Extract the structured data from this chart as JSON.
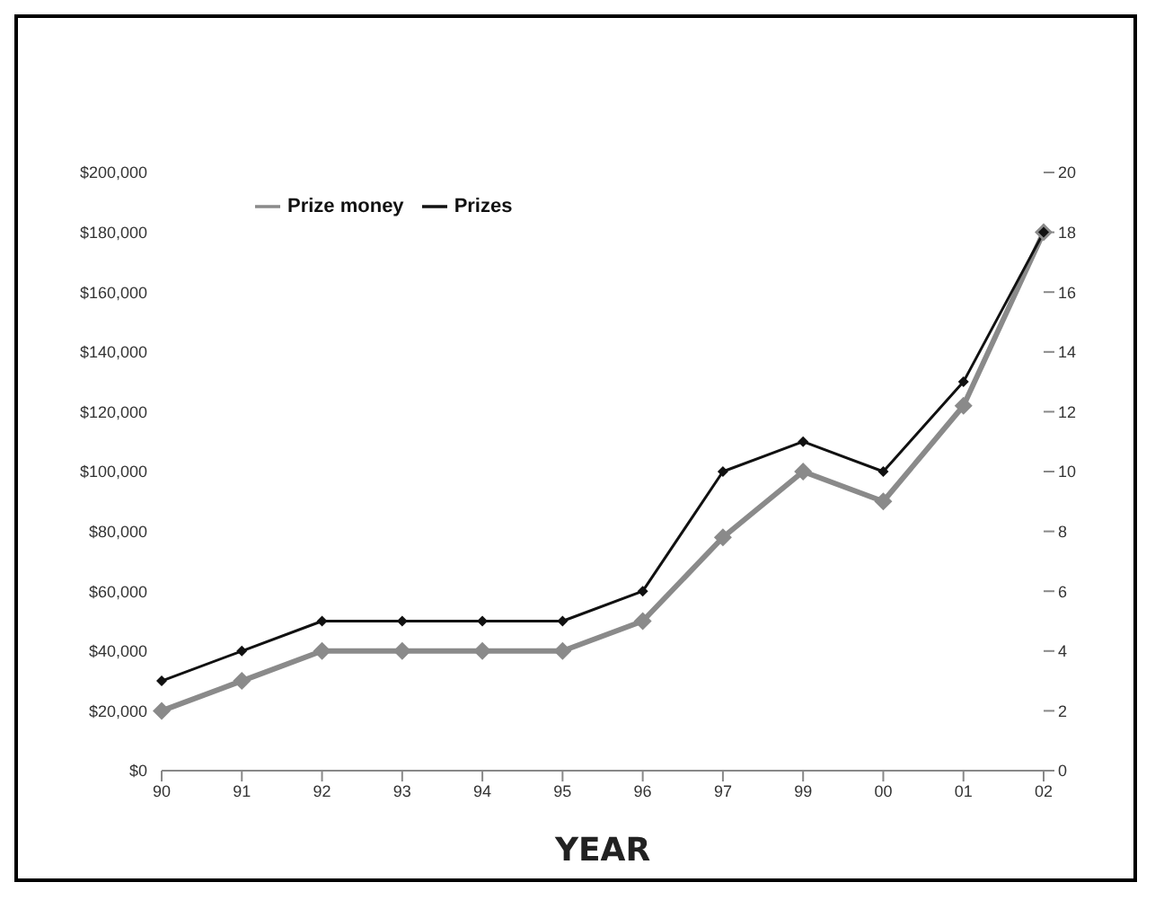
{
  "chart_data": {
    "type": "line",
    "xlabel": "YEAR",
    "categories": [
      "90",
      "91",
      "92",
      "93",
      "94",
      "95",
      "96",
      "97",
      "99",
      "00",
      "01",
      "02"
    ],
    "series": [
      {
        "name": "Prize money",
        "color": "#8a8a8a",
        "values": [
          20000,
          30000,
          40000,
          40000,
          40000,
          40000,
          50000,
          78000,
          100000,
          90000,
          122000,
          180000
        ]
      },
      {
        "name": "Prizes",
        "color": "#111111",
        "axis": "y2",
        "values": [
          3,
          4,
          5,
          5,
          5,
          5,
          6,
          10,
          11,
          10,
          13,
          18
        ]
      }
    ],
    "ylim": [
      0,
      200000
    ],
    "yticks": [
      {
        "value": 0,
        "label": "$0"
      },
      {
        "value": 20000,
        "label": "$20,000"
      },
      {
        "value": 40000,
        "label": "$40,000"
      },
      {
        "value": 60000,
        "label": "$60,000"
      },
      {
        "value": 80000,
        "label": "$80,000"
      },
      {
        "value": 100000,
        "label": "$100,000"
      },
      {
        "value": 120000,
        "label": "$120,000"
      },
      {
        "value": 140000,
        "label": "$140,000"
      },
      {
        "value": 160000,
        "label": "$160,000"
      },
      {
        "value": 180000,
        "label": "$180,000"
      },
      {
        "value": 200000,
        "label": "$200,000"
      }
    ],
    "y2lim": [
      0,
      20
    ],
    "y2ticks": [
      0,
      2,
      4,
      6,
      8,
      10,
      12,
      14,
      16,
      18,
      20
    ],
    "legend": "top left",
    "marker": "diamond",
    "line_style": "solid",
    "grid": false
  }
}
